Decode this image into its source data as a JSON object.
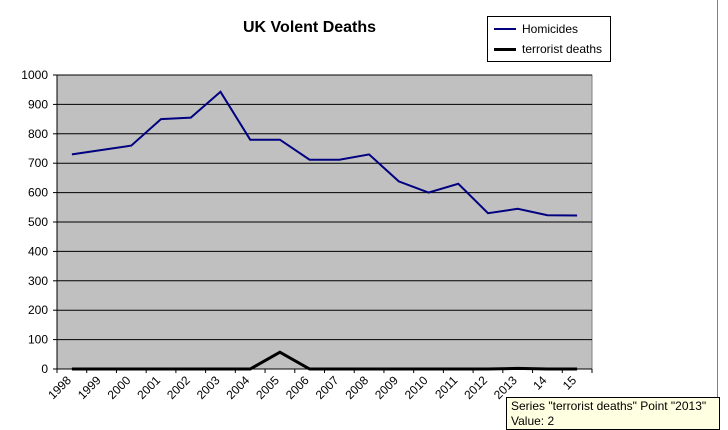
{
  "chart_data": {
    "type": "line",
    "title": "UK Volent Deaths",
    "xlabel": "",
    "ylabel": "",
    "categories": [
      "1998",
      "1999",
      "2000",
      "2001",
      "2002",
      "2003",
      "2004",
      "2005",
      "2006",
      "2007",
      "2008",
      "2009",
      "2010",
      "2011",
      "2012",
      "2013",
      "2014",
      "2015"
    ],
    "ylim": [
      0,
      1000
    ],
    "yticks": [
      0,
      100,
      200,
      300,
      400,
      500,
      600,
      700,
      800,
      900,
      1000
    ],
    "grid": true,
    "legend_position": "top-right",
    "plot_background": "#c0c0c0",
    "series": [
      {
        "name": "Homicides",
        "color": "#000080",
        "values": [
          730,
          745,
          760,
          850,
          855,
          943,
          780,
          780,
          712,
          712,
          730,
          638,
          600,
          630,
          530,
          545,
          523,
          522
        ]
      },
      {
        "name": "terrorist deaths",
        "color": "#000000",
        "values": [
          0,
          0,
          0,
          0,
          0,
          0,
          0,
          57,
          0,
          0,
          0,
          0,
          0,
          0,
          0,
          2,
          0,
          0
        ]
      }
    ]
  },
  "x_tick_labels": [
    "1998",
    "1999",
    "2000",
    "2001",
    "2002",
    "2003",
    "2004",
    "2005",
    "2006",
    "2007",
    "2008",
    "2009",
    "2010",
    "2011",
    "2012",
    "2013",
    "14",
    "15"
  ],
  "tooltip": {
    "line1": "Series \"terrorist deaths\" Point \"2013\"",
    "line2": "Value: 2"
  }
}
